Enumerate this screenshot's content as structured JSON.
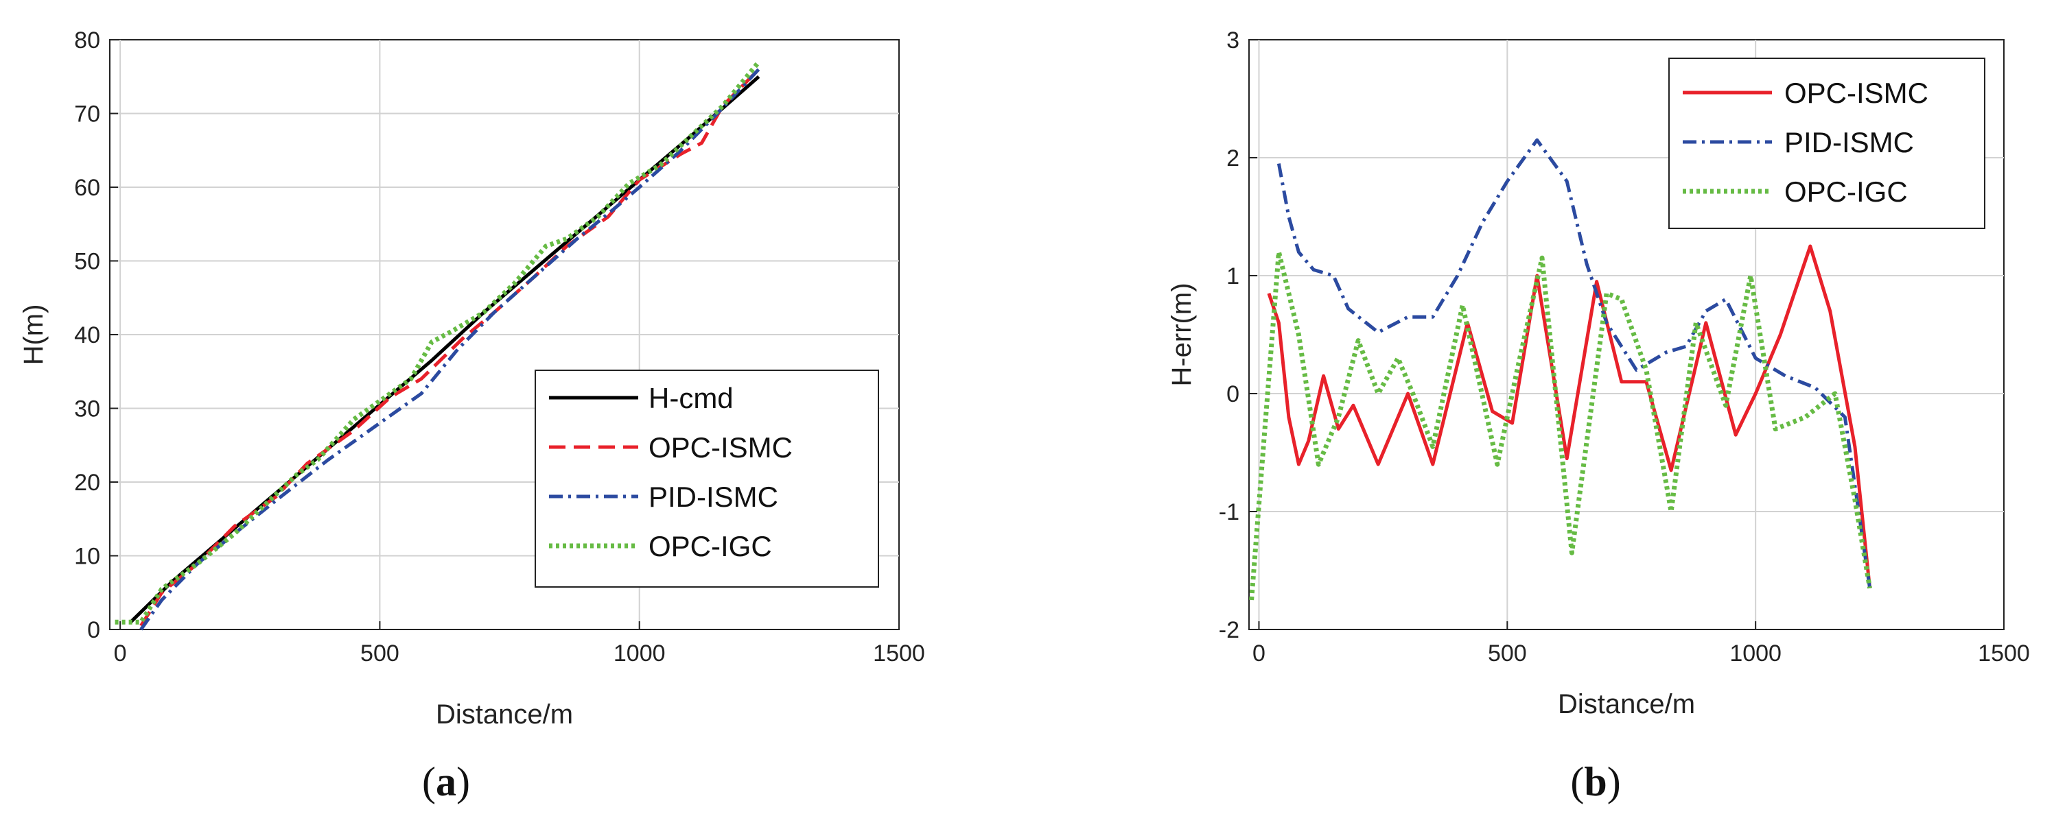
{
  "chart_data": [
    {
      "type": "line",
      "panel_label": "a",
      "caption_open": "(",
      "caption_close": ")",
      "xlabel": "Distance/m",
      "ylabel": "H(m)",
      "xlim": [
        -20,
        1500
      ],
      "ylim": [
        0,
        80
      ],
      "xticks": [
        0,
        500,
        1000,
        1500
      ],
      "yticks": [
        0,
        10,
        20,
        30,
        40,
        50,
        60,
        70,
        80
      ],
      "grid": true,
      "legend_position": "lower-right",
      "series": [
        {
          "name": "H-cmd",
          "color": "#000000",
          "style": "solid",
          "x": [
            20,
            100,
            200,
            300,
            400,
            500,
            600,
            700,
            800,
            900,
            1000,
            1100,
            1230
          ],
          "y": [
            1,
            6.5,
            12.5,
            18.5,
            24.5,
            30.5,
            36.5,
            43,
            49,
            55,
            61,
            67,
            75
          ]
        },
        {
          "name": "OPC-ISMC",
          "color": "#e8212a",
          "style": "dashed",
          "x": [
            40,
            80,
            150,
            220,
            300,
            360,
            450,
            520,
            580,
            660,
            720,
            800,
            860,
            940,
            1000,
            1080,
            1120,
            1160,
            1230
          ],
          "y": [
            0.5,
            5,
            9,
            14,
            18,
            22.5,
            27,
            31.5,
            34,
            39.5,
            43,
            48,
            52,
            56,
            61,
            64.5,
            66,
            71,
            76
          ]
        },
        {
          "name": "PID-ISMC",
          "color": "#2b4aa0",
          "style": "dashdot",
          "x": [
            40,
            80,
            150,
            220,
            300,
            400,
            500,
            580,
            650,
            720,
            800,
            880,
            950,
            1000,
            1080,
            1150,
            1230
          ],
          "y": [
            0,
            4,
            9,
            13,
            17.5,
            23,
            28,
            32,
            38,
            43,
            48,
            53,
            57,
            60,
            65,
            70,
            76
          ]
        },
        {
          "name": "OPC-IGC",
          "color": "#66bb44",
          "style": "dotted",
          "x": [
            -10,
            40,
            80,
            150,
            220,
            280,
            340,
            380,
            450,
            500,
            560,
            600,
            640,
            700,
            760,
            820,
            860,
            920,
            980,
            1040,
            1100,
            1160,
            1230
          ],
          "y": [
            1,
            1,
            5.5,
            9,
            13,
            17,
            21,
            23,
            28.5,
            31,
            34,
            39,
            40.5,
            43,
            47,
            52,
            53,
            56,
            60.5,
            63,
            67,
            71,
            77
          ]
        }
      ]
    },
    {
      "type": "line",
      "panel_label": "b",
      "caption_open": "(",
      "caption_close": ")",
      "xlabel": "Distance/m",
      "ylabel": "H-err(m)",
      "xlim": [
        -20,
        1500
      ],
      "ylim": [
        -2,
        3
      ],
      "xticks": [
        0,
        500,
        1000,
        1500
      ],
      "yticks": [
        -2,
        -1,
        0,
        1,
        2,
        3
      ],
      "grid": true,
      "legend_position": "top-right",
      "series": [
        {
          "name": "OPC-ISMC",
          "color": "#e8212a",
          "style": "solid",
          "x": [
            20,
            40,
            60,
            80,
            100,
            130,
            160,
            190,
            240,
            300,
            350,
            420,
            470,
            510,
            560,
            620,
            680,
            730,
            780,
            830,
            900,
            960,
            1000,
            1050,
            1110,
            1150,
            1200,
            1230
          ],
          "y": [
            0.85,
            0.6,
            -0.2,
            -0.6,
            -0.4,
            0.15,
            -0.3,
            -0.1,
            -0.6,
            0,
            -0.6,
            0.6,
            -0.15,
            -0.25,
            1.0,
            -0.55,
            0.95,
            0.1,
            0.1,
            -0.65,
            0.6,
            -0.35,
            0,
            0.5,
            1.25,
            0.7,
            -0.45,
            -1.65
          ]
        },
        {
          "name": "PID-ISMC",
          "color": "#2b4aa0",
          "style": "dashdot",
          "x": [
            40,
            60,
            80,
            110,
            150,
            180,
            240,
            300,
            350,
            400,
            450,
            500,
            560,
            620,
            660,
            700,
            760,
            820,
            860,
            900,
            940,
            1000,
            1060,
            1120,
            1180,
            1230
          ],
          "y": [
            1.95,
            1.5,
            1.2,
            1.05,
            1.0,
            0.72,
            0.52,
            0.65,
            0.65,
            1.0,
            1.45,
            1.8,
            2.15,
            1.8,
            1.1,
            0.6,
            0.2,
            0.35,
            0.4,
            0.7,
            0.8,
            0.3,
            0.15,
            0.05,
            -0.2,
            -1.65
          ]
        },
        {
          "name": "OPC-IGC",
          "color": "#66bb44",
          "style": "dotted",
          "x": [
            -15,
            10,
            40,
            80,
            120,
            160,
            200,
            240,
            280,
            310,
            350,
            410,
            480,
            520,
            570,
            630,
            700,
            730,
            780,
            830,
            880,
            940,
            990,
            1040,
            1100,
            1160,
            1200,
            1230
          ],
          "y": [
            -1.75,
            -0.4,
            1.2,
            0.5,
            -0.6,
            -0.2,
            0.45,
            0,
            0.3,
            0,
            -0.45,
            0.75,
            -0.6,
            0.2,
            1.15,
            -1.35,
            0.85,
            0.8,
            0.2,
            -1.0,
            0.6,
            -0.1,
            1.0,
            -0.3,
            -0.2,
            0.0,
            -0.9,
            -1.65
          ]
        }
      ]
    }
  ]
}
